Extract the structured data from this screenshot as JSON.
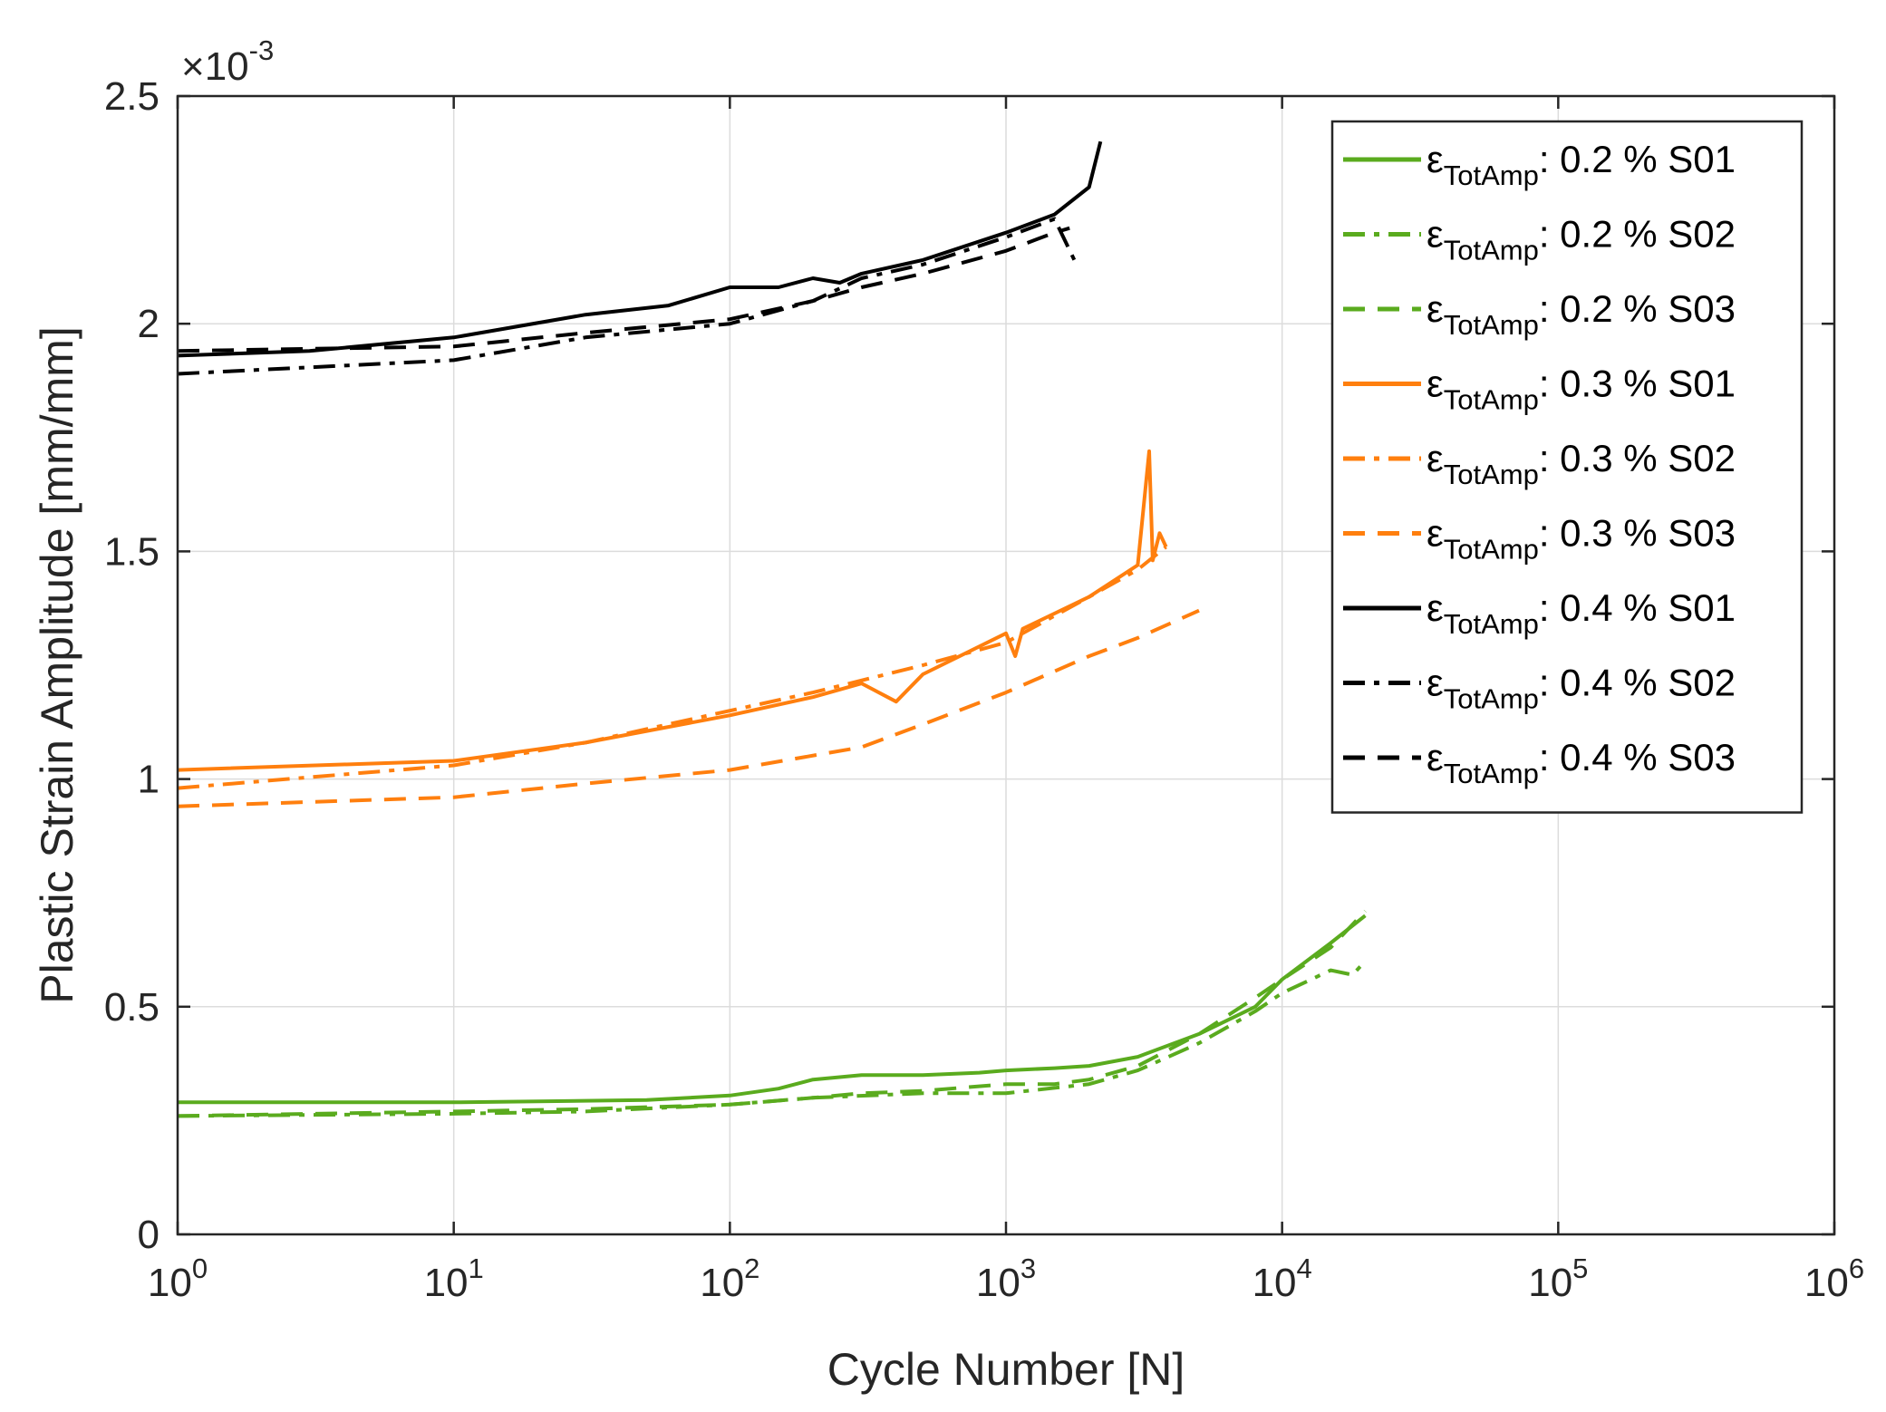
{
  "chart_data": {
    "type": "line",
    "title": "",
    "xlabel": "Cycle Number [N]",
    "ylabel": "Plastic Strain Amplitude [mm/mm]",
    "xscale": "log",
    "xlim": [
      1,
      1000000
    ],
    "ylim": [
      0,
      0.0025
    ],
    "y_multiplier": {
      "base": "×10",
      "exponent": "-3"
    },
    "xticks": [
      {
        "base": "10",
        "exp": "0",
        "value": 1
      },
      {
        "base": "10",
        "exp": "1",
        "value": 10
      },
      {
        "base": "10",
        "exp": "2",
        "value": 100
      },
      {
        "base": "10",
        "exp": "3",
        "value": 1000
      },
      {
        "base": "10",
        "exp": "4",
        "value": 10000
      },
      {
        "base": "10",
        "exp": "5",
        "value": 100000
      },
      {
        "base": "10",
        "exp": "6",
        "value": 1000000
      }
    ],
    "yticks": [
      {
        "label": "0",
        "value": 0
      },
      {
        "label": "0.5",
        "value": 0.0005
      },
      {
        "label": "1",
        "value": 0.001
      },
      {
        "label": "1.5",
        "value": 0.0015
      },
      {
        "label": "2",
        "value": 0.002
      },
      {
        "label": "2.5",
        "value": 0.0025
      }
    ],
    "grid": true,
    "legend_position": "top-right",
    "series": [
      {
        "name": "ε_TotAmp: 0.2 % S01",
        "symbol": "ε",
        "subscript": "TotAmp",
        "suffix": ": 0.2 % S01",
        "color": "#5aab1e",
        "dash": "solid",
        "x": [
          1,
          10,
          50,
          100,
          150,
          200,
          300,
          500,
          800,
          1000,
          1500,
          2000,
          3000,
          5000,
          8000,
          10000,
          15000,
          20000
        ],
        "y": [
          0.00029,
          0.00029,
          0.000295,
          0.000305,
          0.00032,
          0.00034,
          0.00035,
          0.00035,
          0.000355,
          0.00036,
          0.000365,
          0.00037,
          0.00039,
          0.00044,
          0.0005,
          0.00056,
          0.00064,
          0.0007
        ]
      },
      {
        "name": "ε_TotAmp: 0.2 % S02",
        "symbol": "ε",
        "subscript": "TotAmp",
        "suffix": ": 0.2 % S02",
        "color": "#5aab1e",
        "dash": "dashdot",
        "x": [
          1,
          10,
          30,
          100,
          200,
          500,
          1000,
          2000,
          3000,
          5000,
          8000,
          10000,
          15000,
          18000,
          20000
        ],
        "y": [
          0.00026,
          0.000265,
          0.00027,
          0.000285,
          0.0003,
          0.00031,
          0.00031,
          0.00033,
          0.00036,
          0.00042,
          0.00049,
          0.00053,
          0.00058,
          0.00057,
          0.0006
        ]
      },
      {
        "name": "ε_TotAmp: 0.2 % S03",
        "symbol": "ε",
        "subscript": "TotAmp",
        "suffix": ": 0.2 % S03",
        "color": "#5aab1e",
        "dash": "dashed",
        "x": [
          1,
          10,
          30,
          100,
          200,
          300,
          500,
          1000,
          1500,
          2000,
          3000,
          5000,
          8000,
          10000,
          15000,
          20000
        ],
        "y": [
          0.00026,
          0.00027,
          0.000275,
          0.000285,
          0.0003,
          0.00031,
          0.000315,
          0.00033,
          0.00033,
          0.00034,
          0.00037,
          0.00044,
          0.00052,
          0.00056,
          0.00063,
          0.00071
        ]
      },
      {
        "name": "ε_TotAmp: 0.3 % S01",
        "symbol": "ε",
        "subscript": "TotAmp",
        "suffix": ": 0.3 % S01",
        "color": "#ff7f0e",
        "dash": "solid",
        "x": [
          1,
          10,
          30,
          100,
          200,
          300,
          400,
          500,
          1000,
          1080,
          1150,
          2000,
          3000,
          3300,
          3400,
          3600,
          3800
        ],
        "y": [
          0.00102,
          0.00104,
          0.00108,
          0.00114,
          0.00118,
          0.00121,
          0.00117,
          0.00123,
          0.00132,
          0.00127,
          0.00133,
          0.0014,
          0.00147,
          0.00172,
          0.00148,
          0.00154,
          0.00151
        ]
      },
      {
        "name": "ε_TotAmp: 0.3 % S02",
        "symbol": "ε",
        "subscript": "TotAmp",
        "suffix": ": 0.3 % S02",
        "color": "#ff7f0e",
        "dash": "dashdot",
        "x": [
          1,
          10,
          30,
          100,
          200,
          500,
          1000,
          2000,
          3000,
          3800
        ],
        "y": [
          0.00098,
          0.00103,
          0.00108,
          0.00115,
          0.00119,
          0.00125,
          0.0013,
          0.0014,
          0.00146,
          0.00151
        ]
      },
      {
        "name": "ε_TotAmp: 0.3 % S03",
        "symbol": "ε",
        "subscript": "TotAmp",
        "suffix": ": 0.3 % S03",
        "color": "#ff7f0e",
        "dash": "dashed",
        "x": [
          1,
          10,
          30,
          100,
          300,
          500,
          1000,
          2000,
          3000,
          5000
        ],
        "y": [
          0.00094,
          0.00096,
          0.00099,
          0.00102,
          0.00107,
          0.00112,
          0.00119,
          0.00127,
          0.00131,
          0.00137
        ]
      },
      {
        "name": "ε_TotAmp: 0.4 % S01",
        "symbol": "ε",
        "subscript": "TotAmp",
        "suffix": ": 0.4 % S01",
        "color": "#000000",
        "dash": "solid",
        "x": [
          1,
          3,
          10,
          30,
          60,
          100,
          150,
          200,
          250,
          300,
          500,
          1000,
          1500,
          2000,
          2200
        ],
        "y": [
          0.00193,
          0.00194,
          0.00197,
          0.00202,
          0.00204,
          0.00208,
          0.00208,
          0.0021,
          0.00209,
          0.00211,
          0.00214,
          0.0022,
          0.00224,
          0.0023,
          0.0024
        ]
      },
      {
        "name": "ε_TotAmp: 0.4 % S02",
        "symbol": "ε",
        "subscript": "TotAmp",
        "suffix": ": 0.4 % S02",
        "color": "#000000",
        "dash": "dashdot",
        "x": [
          1,
          10,
          30,
          100,
          200,
          300,
          500,
          1000,
          1500,
          1800
        ],
        "y": [
          0.00189,
          0.00192,
          0.00197,
          0.002,
          0.00205,
          0.0021,
          0.00213,
          0.00219,
          0.00223,
          0.00213
        ]
      },
      {
        "name": "ε_TotAmp: 0.4 % S03",
        "symbol": "ε",
        "subscript": "TotAmp",
        "suffix": ": 0.4 % S03",
        "color": "#000000",
        "dash": "dashed",
        "x": [
          1,
          10,
          30,
          100,
          200,
          300,
          500,
          1000,
          1500,
          1700
        ],
        "y": [
          0.00194,
          0.00195,
          0.00198,
          0.00201,
          0.00205,
          0.00208,
          0.00211,
          0.00216,
          0.0022,
          0.00221
        ]
      }
    ]
  }
}
